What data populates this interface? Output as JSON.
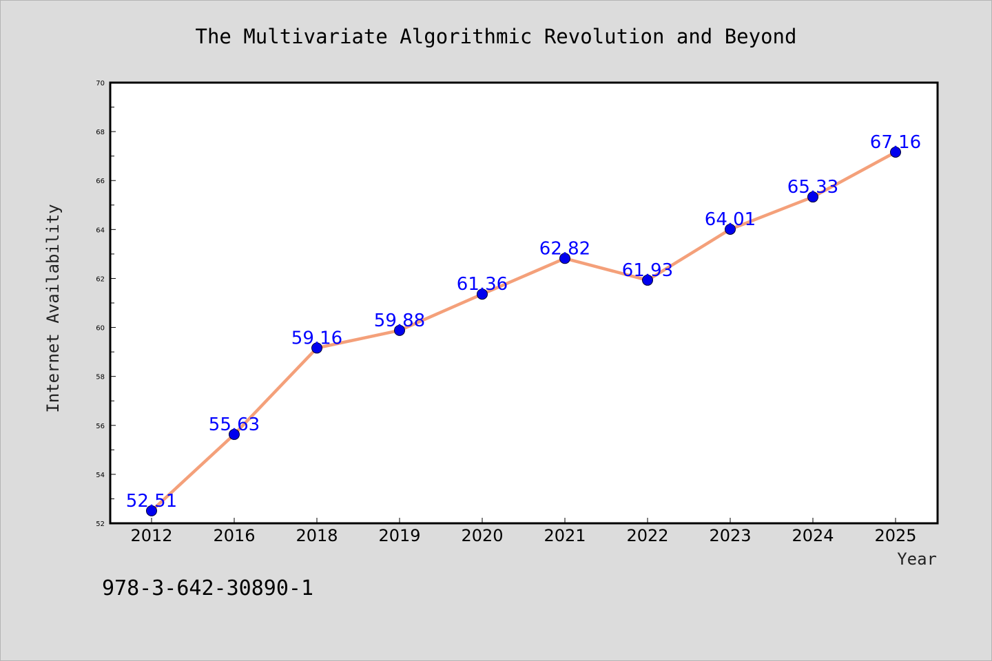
{
  "chart_data": {
    "type": "line",
    "title": "The Multivariate Algorithmic Revolution and Beyond",
    "xlabel": "Year",
    "ylabel": "Internet Availability",
    "categories": [
      "2012",
      "2016",
      "2018",
      "2019",
      "2020",
      "2021",
      "2022",
      "2023",
      "2024",
      "2025"
    ],
    "series": [
      {
        "values": [
          52.51,
          55.63,
          59.16,
          59.88,
          61.36,
          62.82,
          61.93,
          64.01,
          65.33,
          67.16
        ],
        "labels": [
          "52.51",
          "55.63",
          "59.16",
          "59.88",
          "61.36",
          "62.82",
          "61.93",
          "64.01",
          "65.33",
          "67.16"
        ],
        "line_color": "#f4a07a",
        "marker_color": "#0000ee"
      }
    ],
    "ylim": [
      52,
      70
    ],
    "yticks": [
      52,
      54,
      56,
      58,
      60,
      62,
      64,
      66,
      68,
      70
    ],
    "ytick_labels": [
      "52",
      "54",
      "56",
      "58",
      "60",
      "62",
      "64",
      "66",
      "68",
      "70"
    ],
    "grid": false,
    "data_label_color": "#0000ff"
  },
  "footer": {
    "isbn": "978-3-642-30890-1"
  }
}
